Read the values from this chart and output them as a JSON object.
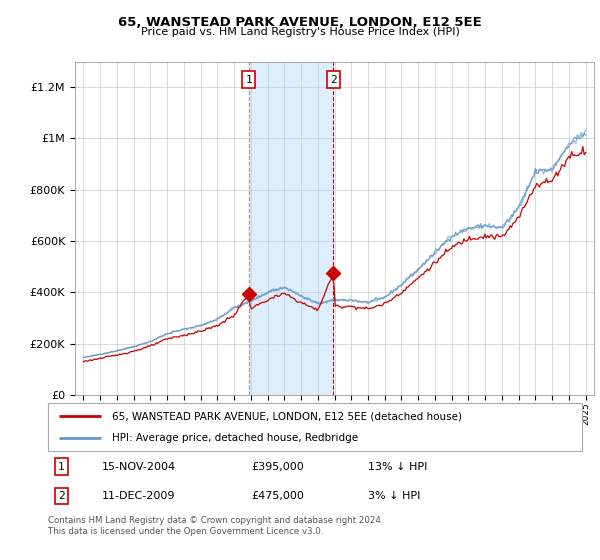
{
  "title": "65, WANSTEAD PARK AVENUE, LONDON, E12 5EE",
  "subtitle": "Price paid vs. HM Land Registry's House Price Index (HPI)",
  "ytick_values": [
    0,
    200000,
    400000,
    600000,
    800000,
    1000000,
    1200000
  ],
  "ylim": [
    0,
    1300000
  ],
  "sale1": {
    "date_num": 2004.87,
    "price": 395000,
    "label": "1",
    "date_str": "15-NOV-2004",
    "pct": "13%",
    "dir": "↓"
  },
  "sale2": {
    "date_num": 2009.94,
    "price": 475000,
    "label": "2",
    "date_str": "11-DEC-2009",
    "pct": "3%",
    "dir": "↓"
  },
  "shade1_start": 2004.87,
  "shade1_end": 2009.94,
  "red_line_color": "#cc0000",
  "blue_line_color": "#6699cc",
  "shade_color": "#ddeeff",
  "sale1_vline_color": "#999999",
  "sale2_vline_color": "#cc0000",
  "legend_red_label": "65, WANSTEAD PARK AVENUE, LONDON, E12 5EE (detached house)",
  "legend_blue_label": "HPI: Average price, detached house, Redbridge",
  "footnote": "Contains HM Land Registry data © Crown copyright and database right 2024.\nThis data is licensed under the Open Government Licence v3.0.",
  "xlim_start": 1994.5,
  "xlim_end": 2025.5
}
